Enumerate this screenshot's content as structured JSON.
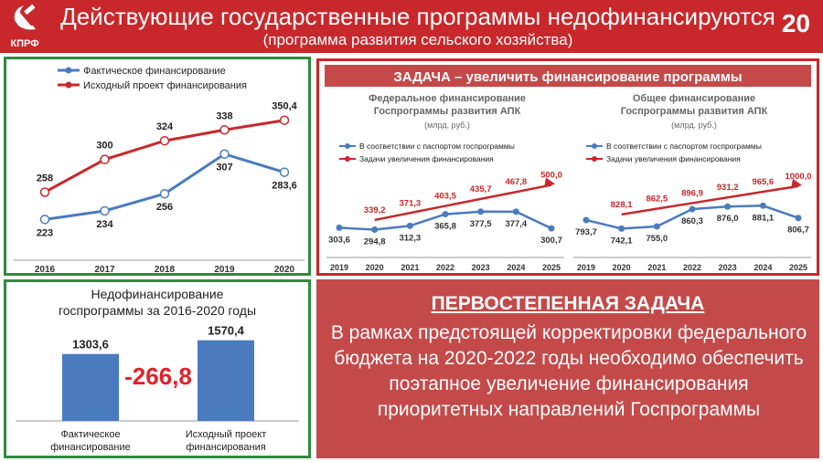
{
  "header": {
    "logo_text": "КПРФ",
    "title": "Действующие государственные программы недофинансируются",
    "subtitle": "(программа  развития  сельского хозяйства)",
    "slide_number": "20"
  },
  "colors": {
    "red": "#c8282b",
    "blue": "#4a7bbf",
    "green": "#2e8b3e",
    "dark_red_fill": "#c44a4a"
  },
  "task_banner": {
    "title": "ЗАДАЧА – увеличить финансирование  программы"
  },
  "priority": {
    "title": "ПЕРВОСТЕПЕННАЯ ЗАДАЧА",
    "text": "В рамках предстоящей корректировки федерального бюджета на 2020-2022 годы необходимо обеспечить поэтапное увеличение финансирования приоритетных направлений Госпрограммы"
  },
  "chart_data": [
    {
      "type": "line",
      "x": [
        "2016",
        "2017",
        "2018",
        "2019",
        "2020"
      ],
      "series": [
        {
          "name": "Фактическое финансирование",
          "color": "#4a7bbf",
          "values": [
            223,
            234,
            256,
            307,
            283.6
          ],
          "labels": [
            "223",
            "234",
            "256",
            "307",
            "283,6"
          ]
        },
        {
          "name": "Исходный проект финансирования",
          "color": "#c8282b",
          "values": [
            258,
            300,
            324,
            338,
            350.4
          ],
          "labels": [
            "258",
            "300",
            "324",
            "338",
            "350,4"
          ]
        }
      ],
      "ylim": [
        180,
        370
      ],
      "legend": "top-left"
    },
    {
      "type": "line",
      "title": "Федеральное финансирование Госпрограммы развития АПК",
      "unit": "(млрд. руб.)",
      "x": [
        "2019",
        "2020",
        "2021",
        "2022",
        "2023",
        "2024",
        "2025"
      ],
      "series": [
        {
          "name": "В соответствии с паспортом госпрограммы",
          "color": "#4a7bbf",
          "values": [
            303.6,
            294.8,
            312.3,
            365.8,
            377.5,
            377.4,
            300.7
          ],
          "labels": [
            "303,6",
            "294,8",
            "312,3",
            "365,8",
            "377,5",
            "377,4",
            "300,7"
          ]
        },
        {
          "name": "Задачи увеличения финансирования",
          "color": "#c8282b",
          "values": [
            null,
            339.2,
            371.3,
            403.5,
            435.7,
            467.8,
            500.0
          ],
          "labels": [
            "",
            "339,2",
            "371,3",
            "403,5",
            "435,7",
            "467,8",
            "500,0"
          ]
        }
      ],
      "ylim": [
        230,
        540
      ],
      "legend": "top-left"
    },
    {
      "type": "line",
      "title": "Общее финансирование Госпрограммы развития АПК",
      "unit": "(млрд. руб.)",
      "x": [
        "2019",
        "2020",
        "2021",
        "2022",
        "2023",
        "2024",
        "2025"
      ],
      "series": [
        {
          "name": "В соответствии с паспортом госпрограммы",
          "color": "#4a7bbf",
          "values": [
            793.7,
            742.1,
            755.0,
            860.3,
            876.0,
            881.1,
            806.7
          ],
          "labels": [
            "793,7",
            "742,1",
            "755,0",
            "860,3",
            "876,0",
            "881,1",
            "806,7"
          ]
        },
        {
          "name": "Задачи увеличения финансирования",
          "color": "#c8282b",
          "values": [
            null,
            828.1,
            862.5,
            896.9,
            931.2,
            965.6,
            1000.0
          ],
          "labels": [
            "",
            "828,1",
            "862,5",
            "896,9",
            "931,2",
            "965,6",
            "1000,0"
          ]
        }
      ],
      "ylim": [
        650,
        1060
      ],
      "legend": "top-left"
    },
    {
      "type": "bar",
      "title": "Недофинансирование госпрограммы за 2016-2020 годы",
      "categories": [
        "Фактическое финансирование",
        "Исходный проект финансирования"
      ],
      "values": [
        1303.6,
        1570.4
      ],
      "labels": [
        "1303,6",
        "1570,4"
      ],
      "difference": "-266,8",
      "color": "#4a7bbf",
      "ylim": [
        0,
        1600
      ]
    }
  ]
}
